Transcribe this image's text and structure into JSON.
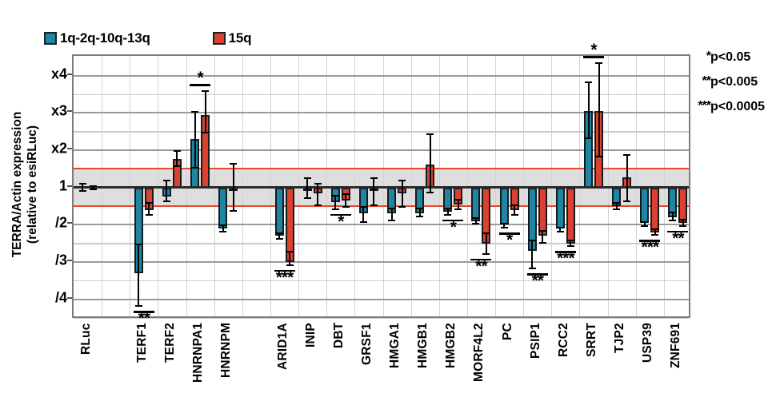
{
  "legend": {
    "items": [
      {
        "label": "1q-2q-10q-13q",
        "swatch_color": "#1E85A3"
      },
      {
        "label": "15q",
        "swatch_color": "#DA4130"
      }
    ]
  },
  "y_axis_title": {
    "line1": "TERRA/Actin expression",
    "line2": "(relative to esiRLuc)"
  },
  "significance_key": {
    "items": [
      {
        "stars": "*",
        "text": "p<0.05"
      },
      {
        "stars": "**",
        "text": "p<0.005"
      },
      {
        "stars": "***",
        "text": "p<0.0005"
      }
    ]
  },
  "chart_data": {
    "type": "bar",
    "ylabel": "TERRA/Actin expression (relative to esiRLuc)",
    "value_convention": "positive value v = fold increase (xv); negative value v = fold decrease (/|v|); 1 = unchanged vs esiRLuc",
    "series": [
      "1q-2q-10q-13q",
      "15q"
    ],
    "y_ticks": [
      {
        "label": "x4",
        "steps": 3
      },
      {
        "label": "x3",
        "steps": 2
      },
      {
        "label": "x2",
        "steps": 1
      },
      {
        "label": "1",
        "steps": 0
      },
      {
        "label": "/2",
        "steps": -1
      },
      {
        "label": "/3",
        "steps": -2
      },
      {
        "label": "/4",
        "steps": -3
      }
    ],
    "ylim_steps": [
      -3.55,
      3.53
    ],
    "grid": true,
    "legend_position": "top-left",
    "reference_band": {
      "upper": "x1.5",
      "lower": "/1.5",
      "band_color": "#DEDEDE",
      "line_color": "#E8472E"
    },
    "gap_after": [
      "RLuc",
      "HNRNPM"
    ],
    "bars": [
      {
        "category": "RLuc",
        "values": [
          1.0,
          1.0
        ],
        "err_hi": [
          1.12,
          1.06
        ],
        "err_lo": [
          -1.12,
          -1.06
        ],
        "sig": null
      },
      {
        "category": "TERF1",
        "values": [
          -3.3,
          -1.6
        ],
        "err_hi": [
          -2.5,
          -1.4
        ],
        "err_lo": [
          -4.2,
          -1.75
        ],
        "sig": {
          "stars": "**",
          "side": "below"
        }
      },
      {
        "category": "TERF2",
        "values": [
          -1.25,
          1.77
        ],
        "err_hi": [
          1.2,
          2.0
        ],
        "err_lo": [
          -1.4,
          1.55
        ],
        "sig": null
      },
      {
        "category": "HNRNPA1",
        "values": [
          2.3,
          2.95
        ],
        "err_hi": [
          3.05,
          3.6
        ],
        "err_lo": [
          1.5,
          2.45
        ],
        "sig": {
          "stars": "*",
          "side": "above"
        }
      },
      {
        "category": "HNRNPM",
        "values": [
          -2.1,
          -1.03
        ],
        "err_hi": [
          -2.0,
          1.65
        ],
        "err_lo": [
          -2.2,
          -1.65
        ],
        "sig": null
      },
      {
        "category": "ARID1A",
        "values": [
          -2.3,
          -3.0
        ],
        "err_hi": [
          -2.2,
          -2.7
        ],
        "err_lo": [
          -2.4,
          -3.1
        ],
        "sig": {
          "stars": "***",
          "side": "below"
        }
      },
      {
        "category": "INIP",
        "values": [
          -1.05,
          -1.15
        ],
        "err_hi": [
          1.28,
          1.13
        ],
        "err_lo": [
          -1.3,
          -1.5
        ],
        "sig": null
      },
      {
        "category": "DBT",
        "values": [
          -1.4,
          -1.35
        ],
        "err_hi": [
          -1.2,
          -1.15
        ],
        "err_lo": [
          -1.6,
          -1.55
        ],
        "sig": {
          "stars": "*",
          "side": "below"
        }
      },
      {
        "category": "GRSF1",
        "values": [
          -1.7,
          -1.1
        ],
        "err_hi": [
          -1.5,
          1.27
        ],
        "err_lo": [
          -1.95,
          -1.5
        ],
        "sig": null
      },
      {
        "category": "HMGA1",
        "values": [
          -1.7,
          -1.15
        ],
        "err_hi": [
          -1.55,
          1.2
        ],
        "err_lo": [
          -1.9,
          -1.55
        ],
        "sig": null
      },
      {
        "category": "HMGB1",
        "values": [
          -1.7,
          1.62
        ],
        "err_hi": [
          -1.55,
          2.45
        ],
        "err_lo": [
          -1.8,
          -1.16
        ],
        "sig": null
      },
      {
        "category": "HMGB2",
        "values": [
          -1.65,
          -1.45
        ],
        "err_hi": [
          -1.55,
          -1.3
        ],
        "err_lo": [
          -1.75,
          -1.6
        ],
        "sig": {
          "stars": "*",
          "side": "below"
        }
      },
      {
        "category": "MORF4L2",
        "values": [
          -1.9,
          -2.5
        ],
        "err_hi": [
          -1.8,
          -2.2
        ],
        "err_lo": [
          -2.0,
          -2.8
        ],
        "sig": {
          "stars": "**",
          "side": "below"
        }
      },
      {
        "category": "PC",
        "values": [
          -2.0,
          -1.6
        ],
        "err_hi": [
          -1.95,
          -1.45
        ],
        "err_lo": [
          -2.1,
          -1.75
        ],
        "sig": {
          "stars": "*",
          "side": "below"
        }
      },
      {
        "category": "PSIP1",
        "values": [
          -2.7,
          -2.3
        ],
        "err_hi": [
          -2.4,
          -2.15
        ],
        "err_lo": [
          -3.2,
          -2.5
        ],
        "sig": {
          "stars": "**",
          "side": "below"
        }
      },
      {
        "category": "RCC2",
        "values": [
          -2.1,
          -2.5
        ],
        "err_hi": [
          -2.05,
          -2.4
        ],
        "err_lo": [
          -2.2,
          -2.6
        ],
        "sig": {
          "stars": "***",
          "side": "below"
        }
      },
      {
        "category": "SRRT",
        "values": [
          3.05,
          3.05
        ],
        "err_hi": [
          3.85,
          4.35
        ],
        "err_lo": [
          2.3,
          1.8
        ],
        "sig": {
          "stars": "*",
          "side": "above"
        }
      },
      {
        "category": "TJP2",
        "values": [
          -1.5,
          1.27
        ],
        "err_hi": [
          -1.4,
          1.9
        ],
        "err_lo": [
          -1.6,
          -1.4
        ],
        "sig": null
      },
      {
        "category": "USP39",
        "values": [
          -1.95,
          -2.2
        ],
        "err_hi": [
          -1.9,
          -2.1
        ],
        "err_lo": [
          -2.05,
          -2.3
        ],
        "sig": {
          "stars": "***",
          "side": "below"
        }
      },
      {
        "category": "ZNF691",
        "values": [
          -1.8,
          -1.95
        ],
        "err_hi": [
          -1.65,
          -1.85
        ],
        "err_lo": [
          -1.9,
          -2.05
        ],
        "sig": {
          "stars": "**",
          "side": "below"
        }
      }
    ],
    "colors": {
      "series_fill": [
        "#1E85A3",
        "#DA4130"
      ],
      "bar_border": "#161B1E",
      "error_bar": "#000000",
      "baseline": "#2A2A2A",
      "major_grid": "#9A9A9A",
      "minor_grid": "#CBCBCB",
      "vertical_grid": "#D2D2D2",
      "frame": "#7C7C7C"
    }
  }
}
